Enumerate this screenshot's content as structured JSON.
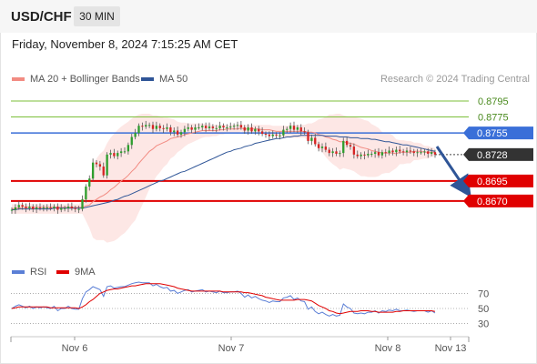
{
  "header": {
    "symbol": "USD/CHF",
    "timeframe": "30 MIN",
    "datetime": "Friday, November 8, 2024 7:15:25 AM CET"
  },
  "legend": {
    "ma20_label": "MA 20 + Bollinger Bands",
    "ma50_label": "MA 50",
    "credit": "Research © 2024 Trading Central",
    "ma20_color": "#f28b82",
    "ma50_color": "#2f5597"
  },
  "rsi_legend": {
    "rsi_label": "RSI",
    "ma_label": "9MA",
    "rsi_color": "#5b7fd6",
    "ma_color": "#e00000"
  },
  "chart_data": {
    "type": "candlestick",
    "y_range": [
      0.8605,
      0.8812
    ],
    "levels": [
      {
        "name": "resistance_2",
        "label": "0.8795",
        "value": 0.8795,
        "color": "#7cbf3a",
        "style": "thin"
      },
      {
        "name": "resistance_1",
        "label": "0.8775",
        "value": 0.8775,
        "color": "#7cbf3a",
        "style": "thin"
      },
      {
        "name": "pivot",
        "label": "0.8755",
        "value": 0.8755,
        "color": "#3a6fd8",
        "style": "medium"
      },
      {
        "name": "support_1",
        "label": "0.8695",
        "value": 0.8695,
        "color": "#e00000",
        "style": "thick"
      },
      {
        "name": "support_2",
        "label": "0.8670",
        "value": 0.867,
        "color": "#e00000",
        "style": "thick"
      }
    ],
    "current_price": {
      "label": "0.8728",
      "value": 0.8728
    },
    "x_labels": [
      "Nov 6",
      "Nov 7",
      "Nov 8",
      "Nov 13"
    ],
    "rsi_range": [
      15,
      85
    ],
    "rsi_levels": [
      {
        "label": "70",
        "value": 70
      },
      {
        "label": "50",
        "value": 50
      },
      {
        "label": "30",
        "value": 30
      }
    ],
    "close": [
      0.8659,
      0.8662,
      0.8665,
      0.8663,
      0.8661,
      0.8663,
      0.866,
      0.8662,
      0.8661,
      0.8662,
      0.8662,
      0.8661,
      0.8663,
      0.8659,
      0.8661,
      0.8661,
      0.8663,
      0.8661,
      0.866,
      0.866,
      0.8672,
      0.8688,
      0.8698,
      0.8718,
      0.8716,
      0.8713,
      0.8702,
      0.8728,
      0.873,
      0.8726,
      0.873,
      0.8732,
      0.8732,
      0.874,
      0.875,
      0.8755,
      0.8764,
      0.8763,
      0.8765,
      0.8765,
      0.876,
      0.8764,
      0.8761,
      0.876,
      0.8762,
      0.8756,
      0.8758,
      0.8753,
      0.8756,
      0.876,
      0.8762,
      0.8759,
      0.8762,
      0.8762,
      0.8764,
      0.8761,
      0.8763,
      0.8761,
      0.8761,
      0.8764,
      0.8762,
      0.8762,
      0.8763,
      0.8764,
      0.8765,
      0.8762,
      0.8758,
      0.8762,
      0.8757,
      0.876,
      0.8757,
      0.8754,
      0.8753,
      0.8751,
      0.8753,
      0.8752,
      0.8752,
      0.8759,
      0.876,
      0.8764,
      0.8759,
      0.8762,
      0.8757,
      0.8756,
      0.8745,
      0.8749,
      0.8741,
      0.8736,
      0.8738,
      0.8734,
      0.873,
      0.8732,
      0.8729,
      0.873,
      0.8745,
      0.874,
      0.8738,
      0.8728,
      0.8726,
      0.8728,
      0.8727,
      0.8729,
      0.8729,
      0.8731,
      0.8727,
      0.8731,
      0.873,
      0.8733,
      0.8731,
      0.8734,
      0.8732,
      0.8731,
      0.8733,
      0.8732,
      0.873,
      0.8731,
      0.8731,
      0.8732,
      0.8729,
      0.8731,
      0.8728
    ],
    "ma20": [
      0.866,
      0.8661,
      0.8661,
      0.8662,
      0.8662,
      0.8662,
      0.8662,
      0.8662,
      0.8662,
      0.8662,
      0.8662,
      0.8662,
      0.8662,
      0.8662,
      0.8662,
      0.8662,
      0.8662,
      0.8662,
      0.8662,
      0.8662,
      0.8662,
      0.8664,
      0.8665,
      0.8669,
      0.8672,
      0.8675,
      0.8677,
      0.868,
      0.8684,
      0.8687,
      0.8691,
      0.8695,
      0.8698,
      0.8702,
      0.8707,
      0.8711,
      0.8717,
      0.8722,
      0.8727,
      0.8732,
      0.8735,
      0.8739,
      0.8741,
      0.8743,
      0.8745,
      0.8748,
      0.8749,
      0.875,
      0.8751,
      0.8753,
      0.8754,
      0.8755,
      0.8756,
      0.8757,
      0.8758,
      0.8758,
      0.8758,
      0.8758,
      0.8758,
      0.8759,
      0.8759,
      0.876,
      0.876,
      0.876,
      0.876,
      0.8761,
      0.876,
      0.876,
      0.876,
      0.876,
      0.876,
      0.8759,
      0.8759,
      0.8759,
      0.8758,
      0.8757,
      0.8757,
      0.8757,
      0.8757,
      0.8757,
      0.8757,
      0.8757,
      0.8757,
      0.8757,
      0.8756,
      0.8756,
      0.8755,
      0.8753,
      0.8752,
      0.875,
      0.8749,
      0.8747,
      0.8746,
      0.8744,
      0.8744,
      0.8743,
      0.8742,
      0.8741,
      0.8739,
      0.8737,
      0.8736,
      0.8735,
      0.8733,
      0.8732,
      0.8731,
      0.873,
      0.873,
      0.873,
      0.873,
      0.8729,
      0.8731,
      0.8731,
      0.8731,
      0.8731,
      0.8732,
      0.8732,
      0.8732,
      0.8731,
      0.8731,
      0.8731,
      0.8731
    ],
    "bb_upper": [
      0.8666,
      0.8666,
      0.8666,
      0.8666,
      0.8666,
      0.8666,
      0.8666,
      0.8666,
      0.8666,
      0.8666,
      0.8666,
      0.8666,
      0.8666,
      0.8666,
      0.8666,
      0.8666,
      0.8666,
      0.8666,
      0.8666,
      0.8666,
      0.867,
      0.8683,
      0.8694,
      0.8714,
      0.8723,
      0.8729,
      0.8733,
      0.8742,
      0.8749,
      0.8754,
      0.8759,
      0.8763,
      0.8766,
      0.8769,
      0.8773,
      0.8776,
      0.8778,
      0.8779,
      0.8779,
      0.8779,
      0.8777,
      0.8777,
      0.8776,
      0.8774,
      0.8774,
      0.8773,
      0.8772,
      0.8769,
      0.8768,
      0.8768,
      0.8767,
      0.8767,
      0.8767,
      0.8767,
      0.8767,
      0.8766,
      0.8766,
      0.8765,
      0.8765,
      0.8765,
      0.8765,
      0.8765,
      0.8765,
      0.8765,
      0.8766,
      0.8765,
      0.8765,
      0.8765,
      0.8765,
      0.8765,
      0.8765,
      0.8765,
      0.8765,
      0.8765,
      0.8764,
      0.8764,
      0.8764,
      0.8764,
      0.8764,
      0.8765,
      0.8765,
      0.8765,
      0.8765,
      0.8765,
      0.8767,
      0.8767,
      0.8769,
      0.8772,
      0.8773,
      0.8775,
      0.8778,
      0.8778,
      0.8779,
      0.8779,
      0.8777,
      0.8776,
      0.8775,
      0.8775,
      0.8774,
      0.8773,
      0.8771,
      0.877,
      0.8766,
      0.8764,
      0.8761,
      0.8756,
      0.8755,
      0.8755,
      0.8752,
      0.8747,
      0.8746,
      0.8746,
      0.8745,
      0.8745,
      0.8743,
      0.8743,
      0.8742,
      0.8739,
      0.8739,
      0.8737,
      0.8736
    ],
    "bb_lower": [
      0.8654,
      0.8654,
      0.8654,
      0.8654,
      0.8654,
      0.8654,
      0.8654,
      0.8654,
      0.8654,
      0.8654,
      0.8654,
      0.8654,
      0.8654,
      0.8654,
      0.8654,
      0.8654,
      0.8654,
      0.8654,
      0.8654,
      0.8654,
      0.8654,
      0.8645,
      0.8636,
      0.8624,
      0.8621,
      0.8621,
      0.8621,
      0.8618,
      0.8619,
      0.862,
      0.8623,
      0.8627,
      0.863,
      0.8635,
      0.8641,
      0.8646,
      0.8656,
      0.8665,
      0.8675,
      0.8685,
      0.8693,
      0.8701,
      0.8706,
      0.8712,
      0.8716,
      0.8723,
      0.8726,
      0.8731,
      0.8734,
      0.8738,
      0.8741,
      0.8743,
      0.8745,
      0.8747,
      0.8749,
      0.875,
      0.875,
      0.8751,
      0.8751,
      0.8753,
      0.8753,
      0.8755,
      0.8755,
      0.8755,
      0.8754,
      0.8757,
      0.8755,
      0.8755,
      0.8755,
      0.8755,
      0.8755,
      0.8753,
      0.8753,
      0.8753,
      0.8752,
      0.875,
      0.875,
      0.875,
      0.875,
      0.8749,
      0.8749,
      0.8749,
      0.8749,
      0.8749,
      0.8745,
      0.8745,
      0.8741,
      0.8734,
      0.8731,
      0.8725,
      0.872,
      0.8716,
      0.8713,
      0.8709,
      0.8711,
      0.871,
      0.8709,
      0.8707,
      0.8704,
      0.8701,
      0.8701,
      0.87,
      0.87,
      0.87,
      0.8701,
      0.8704,
      0.8705,
      0.8705,
      0.8708,
      0.8711,
      0.8716,
      0.8716,
      0.8717,
      0.8717,
      0.8721,
      0.8721,
      0.8722,
      0.8723,
      0.8723,
      0.8725,
      0.8726
    ],
    "ma50": [
      0.8659,
      0.8659,
      0.866,
      0.866,
      0.866,
      0.866,
      0.866,
      0.866,
      0.866,
      0.866,
      0.866,
      0.866,
      0.8661,
      0.8661,
      0.8661,
      0.8661,
      0.8661,
      0.8661,
      0.8661,
      0.8661,
      0.8661,
      0.8662,
      0.8663,
      0.8664,
      0.8665,
      0.8666,
      0.8667,
      0.8668,
      0.8669,
      0.8671,
      0.8672,
      0.8674,
      0.8676,
      0.8677,
      0.8679,
      0.8681,
      0.8683,
      0.8685,
      0.8687,
      0.8689,
      0.8691,
      0.8693,
      0.8695,
      0.8696,
      0.8698,
      0.87,
      0.8702,
      0.8704,
      0.8706,
      0.8707,
      0.8709,
      0.8711,
      0.8713,
      0.8715,
      0.8717,
      0.8719,
      0.8721,
      0.8723,
      0.8725,
      0.8727,
      0.8729,
      0.8731,
      0.8732,
      0.8734,
      0.8735,
      0.8736,
      0.8738,
      0.8739,
      0.874,
      0.8742,
      0.8743,
      0.8744,
      0.8745,
      0.8746,
      0.8747,
      0.8748,
      0.8748,
      0.8749,
      0.875,
      0.875,
      0.8751,
      0.8751,
      0.8752,
      0.8752,
      0.8752,
      0.8752,
      0.8752,
      0.8752,
      0.8752,
      0.8751,
      0.8751,
      0.8751,
      0.8751,
      0.875,
      0.875,
      0.875,
      0.8749,
      0.8749,
      0.8749,
      0.8748,
      0.8748,
      0.8748,
      0.8747,
      0.8747,
      0.8746,
      0.8745,
      0.8744,
      0.8744,
      0.8743,
      0.8742,
      0.8741,
      0.874,
      0.874,
      0.8739,
      0.8738,
      0.8737,
      0.8736,
      0.8735,
      0.8734,
      0.8733,
      0.8732
    ],
    "rsi": [
      50,
      53,
      55,
      53,
      51,
      53,
      50,
      52,
      51,
      52,
      51,
      50,
      53,
      47,
      50,
      50,
      53,
      50,
      49,
      49,
      63,
      72,
      75,
      79,
      77,
      75,
      66,
      79,
      80,
      77,
      78,
      79,
      79,
      81,
      83,
      84,
      85,
      84,
      84,
      84,
      80,
      82,
      79,
      77,
      78,
      73,
      74,
      70,
      72,
      74,
      75,
      72,
      73,
      74,
      75,
      72,
      73,
      72,
      71,
      73,
      71,
      71,
      72,
      72,
      73,
      70,
      65,
      68,
      64,
      66,
      63,
      61,
      60,
      58,
      60,
      59,
      59,
      64,
      65,
      67,
      62,
      64,
      60,
      59,
      49,
      52,
      46,
      43,
      45,
      42,
      40,
      42,
      40,
      41,
      56,
      52,
      50,
      44,
      43,
      44,
      43,
      45,
      45,
      47,
      44,
      47,
      46,
      48,
      47,
      49,
      47,
      47,
      48,
      47,
      46,
      47,
      47,
      47,
      45,
      47,
      44
    ],
    "rsi_ma": [
      50,
      51,
      52,
      52,
      52,
      52,
      52,
      52,
      52,
      52,
      52,
      51,
      51,
      51,
      51,
      51,
      51,
      51,
      51,
      50,
      52,
      55,
      59,
      62,
      66,
      70,
      72,
      74,
      75,
      76,
      76,
      77,
      78,
      79,
      80,
      80,
      81,
      82,
      83,
      83,
      83,
      83,
      83,
      82,
      81,
      80,
      79,
      77,
      76,
      75,
      74,
      73,
      73,
      73,
      73,
      73,
      73,
      73,
      73,
      73,
      72,
      72,
      72,
      72,
      72,
      72,
      71,
      71,
      70,
      69,
      68,
      67,
      65,
      64,
      63,
      62,
      61,
      61,
      61,
      61,
      61,
      62,
      62,
      62,
      61,
      60,
      57,
      54,
      52,
      50,
      47,
      46,
      44,
      43,
      44,
      45,
      46,
      46,
      46,
      47,
      47,
      47,
      46,
      46,
      45,
      45,
      45,
      45,
      45,
      46,
      46,
      47,
      47,
      47,
      47,
      47,
      47,
      47,
      47,
      47,
      46
    ]
  }
}
